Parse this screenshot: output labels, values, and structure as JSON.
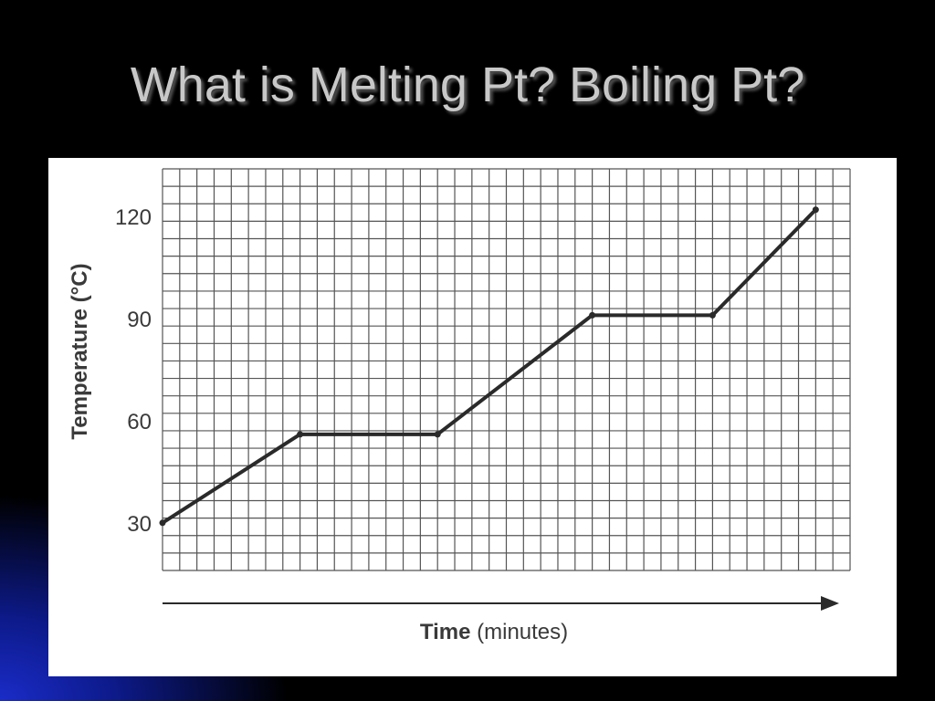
{
  "slide": {
    "title": "What is Melting Pt? Boiling Pt?"
  },
  "chart_data": {
    "type": "line",
    "title": "",
    "xlabel_bold": "Time",
    "xlabel_rest": " (minutes)",
    "ylabel": "Temperature (°C)",
    "ylim": [
      16,
      134
    ],
    "yticks": [
      30,
      60,
      90,
      120
    ],
    "grid": true,
    "x_ticks_labeled": false,
    "x_axis_arrow": true,
    "series": [
      {
        "x": [
          0,
          8,
          16,
          25,
          32,
          38
        ],
        "y": [
          30,
          56,
          56,
          91,
          91,
          122
        ]
      }
    ],
    "colors": {
      "line": "#2a2a2a",
      "grid": "#555555",
      "text": "#3a3a3a"
    }
  }
}
